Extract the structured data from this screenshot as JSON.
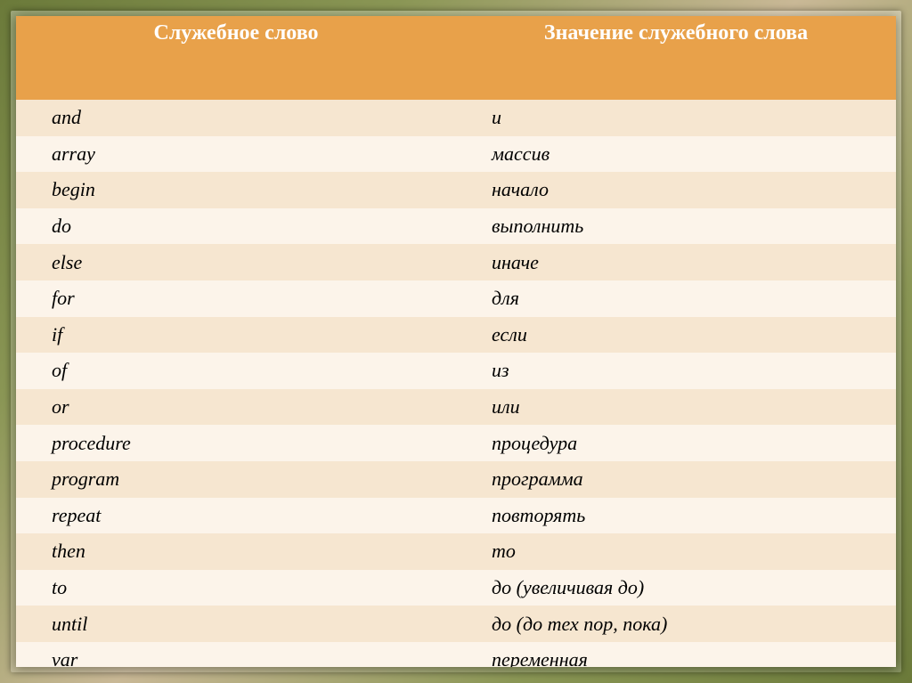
{
  "table": {
    "header_bg": "#e8a14a",
    "row_odd_bg": "#f6e6d0",
    "row_even_bg": "#fcf4ea",
    "columns": [
      "Служебное слово",
      "Значение служебного слова"
    ],
    "rows": [
      {
        "keyword": "and",
        "meaning": "и"
      },
      {
        "keyword": "array",
        "meaning": "массив"
      },
      {
        "keyword": "begin",
        "meaning": "начало"
      },
      {
        "keyword": "do",
        "meaning": "выполнить"
      },
      {
        "keyword": "else",
        "meaning": "иначе"
      },
      {
        "keyword": "for",
        "meaning": "для"
      },
      {
        "keyword": "if",
        "meaning": "если"
      },
      {
        "keyword": "of",
        "meaning": "из"
      },
      {
        "keyword": "or",
        "meaning": "или"
      },
      {
        "keyword": "procedure",
        "meaning": "процедура"
      },
      {
        "keyword": "program",
        "meaning": "программа"
      },
      {
        "keyword": "repeat",
        "meaning": "повторять"
      },
      {
        "keyword": "then",
        "meaning": "то"
      },
      {
        "keyword": "to",
        "meaning": "до (увеличивая до)"
      },
      {
        "keyword": "until",
        "meaning": "до (до тех пор, пока)"
      },
      {
        "keyword": "var",
        "meaning": "переменная"
      }
    ]
  }
}
